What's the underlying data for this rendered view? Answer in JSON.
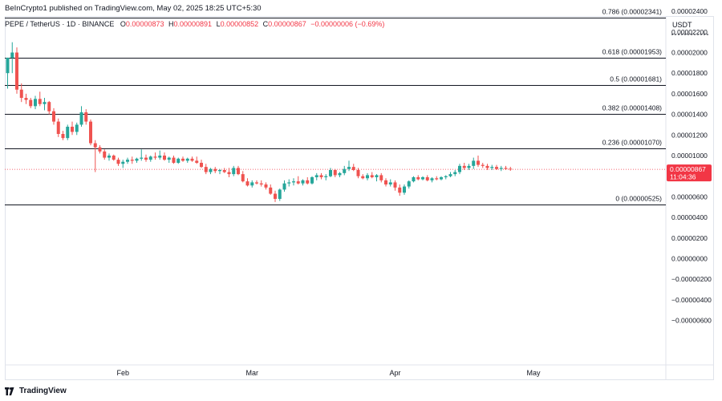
{
  "header": {
    "published": "BeInCrypto1 published on TradingView.com, May 02, 2025 18:25 UTC+5:30"
  },
  "legend": {
    "symbol": "PEPE / TetherUS · 1D · BINANCE",
    "o_label": "O",
    "o_value": "0.00000873",
    "h_label": "H",
    "h_value": "0.00000891",
    "l_label": "L",
    "l_value": "0.00000852",
    "c_label": "C",
    "c_value": "0.00000867",
    "change": "−0.00000006 (−0.69%)"
  },
  "price_axis": {
    "currency": "USDT",
    "ticks": [
      {
        "label": "0.00002400",
        "value": 2.4e-05
      },
      {
        "label": "0.00002200",
        "value": 2.2e-05
      },
      {
        "label": "0.00002000",
        "value": 2e-05
      },
      {
        "label": "0.00001800",
        "value": 1.8e-05
      },
      {
        "label": "0.00001600",
        "value": 1.6e-05
      },
      {
        "label": "0.00001400",
        "value": 1.4e-05
      },
      {
        "label": "0.00001200",
        "value": 1.2e-05
      },
      {
        "label": "0.00001000",
        "value": 1e-05
      },
      {
        "label": "0.00000800",
        "value": 8e-06
      },
      {
        "label": "0.00000600",
        "value": 6e-06
      },
      {
        "label": "0.00000400",
        "value": 4e-06
      },
      {
        "label": "0.00000200",
        "value": 2e-06
      },
      {
        "label": "0.00000000",
        "value": 0.0
      },
      {
        "label": "−0.00000200",
        "value": -2e-06
      },
      {
        "label": "−0.00000400",
        "value": -4e-06
      },
      {
        "label": "−0.00000600",
        "value": -6e-06
      }
    ],
    "last_price": "0.00000867",
    "countdown": "11:04:36",
    "last_value": 8.67e-06
  },
  "time_axis": {
    "labels": [
      {
        "label": "Feb",
        "index": 25
      },
      {
        "label": "Mar",
        "index": 53
      },
      {
        "label": "Apr",
        "index": 84
      },
      {
        "label": "May",
        "index": 114
      }
    ]
  },
  "fib_levels": [
    {
      "label": "0.786 (0.00002341)",
      "value": 2.341e-05
    },
    {
      "label": "0.618 (0.00001953)",
      "value": 1.953e-05
    },
    {
      "label": "0.5 (0.00001681)",
      "value": 1.681e-05
    },
    {
      "label": "0.382 (0.00001408)",
      "value": 1.408e-05
    },
    {
      "label": "0.236 (0.00001070)",
      "value": 1.07e-05
    },
    {
      "label": "0 (0.00000525)",
      "value": 5.25e-06
    }
  ],
  "colors": {
    "up": "#26a69a",
    "down": "#ef5350",
    "fib_line": "#131722",
    "last_price_badge": "#f23645"
  },
  "footer": {
    "brand": "TradingView",
    "logo_icon": "tradingview-logo-icon"
  },
  "chart_data": {
    "type": "candlestick",
    "title": "PEPE / TetherUS · 1D · BINANCE",
    "y_unit": "USDT",
    "ylim": [
      -6e-06,
      2.6e-05
    ],
    "x_labels": [
      "Feb",
      "Mar",
      "Apr",
      "May"
    ],
    "candles_scale": 1e-08,
    "candles": [
      [
        1800,
        1950,
        1650,
        1950
      ],
      [
        1950,
        2100,
        1800,
        2000
      ],
      [
        2000,
        2050,
        1600,
        1640
      ],
      [
        1640,
        1700,
        1520,
        1560
      ],
      [
        1560,
        1600,
        1500,
        1540
      ],
      [
        1540,
        1560,
        1460,
        1480
      ],
      [
        1480,
        1580,
        1450,
        1550
      ],
      [
        1550,
        1620,
        1480,
        1500
      ],
      [
        1500,
        1560,
        1440,
        1520
      ],
      [
        1520,
        1530,
        1400,
        1430
      ],
      [
        1430,
        1460,
        1300,
        1330
      ],
      [
        1330,
        1360,
        1180,
        1210
      ],
      [
        1210,
        1240,
        1150,
        1170
      ],
      [
        1170,
        1300,
        1150,
        1280
      ],
      [
        1280,
        1330,
        1200,
        1230
      ],
      [
        1230,
        1320,
        1200,
        1300
      ],
      [
        1300,
        1480,
        1280,
        1420
      ],
      [
        1420,
        1450,
        1300,
        1330
      ],
      [
        1330,
        1350,
        1100,
        1120
      ],
      [
        1120,
        1150,
        840,
        1080
      ],
      [
        1080,
        1100,
        1020,
        1040
      ],
      [
        1040,
        1060,
        960,
        980
      ],
      [
        980,
        1020,
        950,
        1000
      ],
      [
        1000,
        1010,
        950,
        960
      ],
      [
        960,
        980,
        900,
        920
      ],
      [
        920,
        960,
        880,
        940
      ],
      [
        940,
        980,
        920,
        960
      ],
      [
        960,
        990,
        920,
        950
      ],
      [
        950,
        980,
        930,
        970
      ],
      [
        970,
        1060,
        950,
        980
      ],
      [
        980,
        1010,
        940,
        960
      ],
      [
        960,
        1000,
        940,
        990
      ],
      [
        990,
        1030,
        960,
        980
      ],
      [
        980,
        1050,
        960,
        1000
      ],
      [
        1000,
        1030,
        950,
        960
      ],
      [
        960,
        990,
        930,
        980
      ],
      [
        980,
        1000,
        920,
        930
      ],
      [
        930,
        980,
        920,
        970
      ],
      [
        970,
        990,
        940,
        950
      ],
      [
        950,
        980,
        930,
        970
      ],
      [
        970,
        990,
        940,
        950
      ],
      [
        950,
        990,
        920,
        930
      ],
      [
        930,
        960,
        880,
        890
      ],
      [
        890,
        920,
        820,
        840
      ],
      [
        840,
        880,
        820,
        870
      ],
      [
        870,
        890,
        830,
        850
      ],
      [
        850,
        870,
        820,
        860
      ],
      [
        860,
        880,
        830,
        840
      ],
      [
        840,
        880,
        790,
        820
      ],
      [
        820,
        900,
        800,
        880
      ],
      [
        880,
        900,
        810,
        820
      ],
      [
        820,
        850,
        740,
        750
      ],
      [
        750,
        780,
        700,
        710
      ],
      [
        710,
        760,
        690,
        740
      ],
      [
        740,
        760,
        720,
        730
      ],
      [
        730,
        760,
        700,
        720
      ],
      [
        720,
        740,
        670,
        690
      ],
      [
        690,
        720,
        620,
        630
      ],
      [
        630,
        660,
        550,
        580
      ],
      [
        580,
        680,
        560,
        670
      ],
      [
        670,
        760,
        650,
        730
      ],
      [
        730,
        770,
        700,
        740
      ],
      [
        740,
        780,
        710,
        750
      ],
      [
        750,
        800,
        720,
        730
      ],
      [
        730,
        770,
        710,
        760
      ],
      [
        760,
        790,
        720,
        730
      ],
      [
        730,
        800,
        720,
        790
      ],
      [
        790,
        830,
        760,
        810
      ],
      [
        810,
        830,
        770,
        790
      ],
      [
        790,
        820,
        760,
        800
      ],
      [
        800,
        880,
        790,
        860
      ],
      [
        860,
        870,
        790,
        810
      ],
      [
        810,
        840,
        790,
        830
      ],
      [
        830,
        900,
        810,
        870
      ],
      [
        870,
        950,
        850,
        890
      ],
      [
        890,
        920,
        850,
        860
      ],
      [
        860,
        880,
        780,
        800
      ],
      [
        800,
        820,
        770,
        780
      ],
      [
        780,
        830,
        760,
        810
      ],
      [
        810,
        840,
        780,
        790
      ],
      [
        790,
        820,
        750,
        810
      ],
      [
        810,
        830,
        740,
        760
      ],
      [
        760,
        780,
        700,
        720
      ],
      [
        720,
        770,
        700,
        740
      ],
      [
        740,
        760,
        660,
        690
      ],
      [
        690,
        720,
        610,
        640
      ],
      [
        640,
        720,
        620,
        700
      ],
      [
        700,
        760,
        680,
        750
      ],
      [
        750,
        800,
        740,
        790
      ],
      [
        790,
        810,
        760,
        770
      ],
      [
        770,
        800,
        760,
        790
      ],
      [
        790,
        810,
        750,
        760
      ],
      [
        760,
        790,
        740,
        780
      ],
      [
        780,
        800,
        760,
        770
      ],
      [
        770,
        800,
        760,
        790
      ],
      [
        790,
        810,
        770,
        800
      ],
      [
        800,
        840,
        790,
        820
      ],
      [
        820,
        860,
        800,
        840
      ],
      [
        840,
        920,
        820,
        900
      ],
      [
        900,
        930,
        860,
        880
      ],
      [
        880,
        920,
        860,
        900
      ],
      [
        900,
        980,
        870,
        950
      ],
      [
        950,
        1000,
        890,
        910
      ],
      [
        910,
        930,
        880,
        900
      ],
      [
        900,
        920,
        860,
        880
      ],
      [
        880,
        910,
        860,
        890
      ],
      [
        890,
        910,
        860,
        870
      ],
      [
        870,
        900,
        850,
        880
      ],
      [
        880,
        900,
        860,
        870
      ],
      [
        873,
        891,
        852,
        867
      ]
    ]
  }
}
